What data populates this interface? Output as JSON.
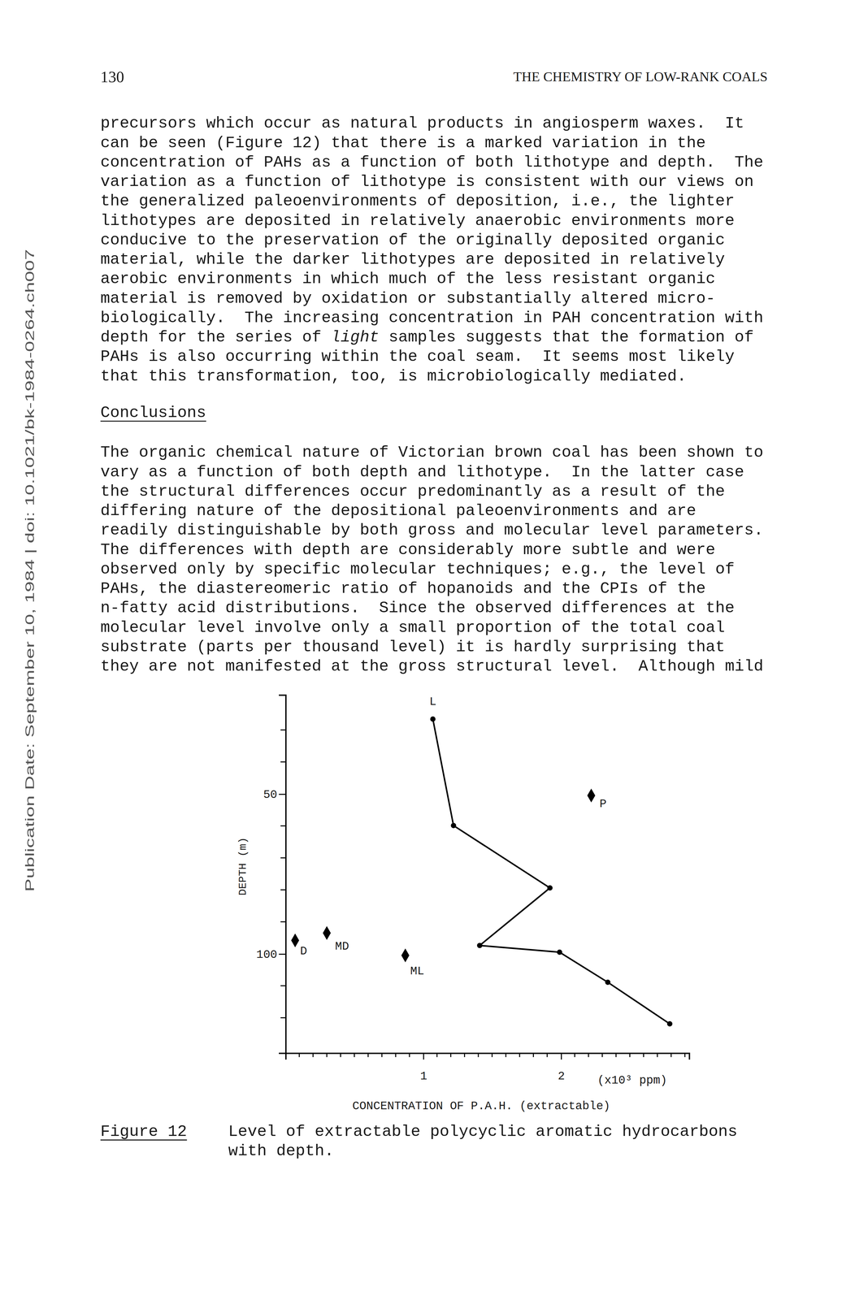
{
  "header": {
    "page_number": "130",
    "running_title": "THE CHEMISTRY OF LOW-RANK COALS"
  },
  "side_note": "Publication Date: September 10, 1984 | doi: 10.1021/bk-1984-0264.ch007",
  "paragraph_1": [
    "precursors which occur as natural products in angiosperm waxes.  It",
    "can be seen (Figure 12) that there is a marked variation in the",
    "concentration of PAHs as a function of both lithotype and depth.  The",
    "variation as a function of lithotype is consistent with our views on",
    "the generalized paleoenvironments of deposition, i.e., the lighter",
    "lithotypes are deposited in relatively anaerobic environments more",
    "conducive to the preservation of the originally deposited organic",
    "material, while the darker lithotypes are deposited in relatively",
    "aerobic environments in which much of the less resistant organic",
    "material is removed by oxidation or substantially altered micro-",
    "biologically.  The increasing concentration in PAH concentration with",
    [
      "depth for the series of ",
      {
        "text": "light",
        "italic": true
      },
      " samples suggests that the formation of"
    ],
    "PAHs is also occurring within the coal seam.  It seems most likely",
    "that this transformation, too, is microbiologically mediated."
  ],
  "heading": "Conclusions",
  "paragraph_2": [
    "The organic chemical nature of Victorian brown coal has been shown to",
    "vary as a function of both depth and lithotype.  In the latter case",
    "the structural differences occur predominantly as a result of the",
    "differing nature of the depositional paleoenvironments and are",
    "readily distinguishable by both gross and molecular level parameters.",
    "The differences with depth are considerably more subtle and were",
    "observed only by specific molecular techniques; e.g., the level of",
    "PAHs, the diastereomeric ratio of hopanoids and the CPIs of the",
    "n-fatty acid distributions.  Since the observed differences at the",
    "molecular level involve only a small proportion of the total coal",
    "substrate (parts per thousand level) it is hardly surprising that",
    "they are not manifested at the gross structural level.  Although mild"
  ],
  "chart_data": {
    "type": "line",
    "xlabel": "CONCENTRATION OF P.A.H. (extractable)",
    "x_unit": "(x10³ ppm)",
    "ylabel": "DEPTH (m)",
    "xlim": [
      0,
      2.93
    ],
    "xticks": [
      1,
      2
    ],
    "x_minor_ticks": [
      0.1,
      0.2,
      0.3,
      0.4,
      0.5,
      0.6,
      0.7,
      0.8,
      0.9,
      1.1,
      1.2,
      1.3,
      1.4,
      1.5,
      1.6,
      1.7,
      1.8,
      1.9,
      2.1,
      2.2,
      2.3,
      2.4,
      2.5,
      2.6,
      2.7,
      2.8,
      2.9
    ],
    "ylim": [
      131,
      19
    ],
    "yticks": [
      50,
      100
    ],
    "y_minor_ticks": [
      30,
      40,
      60,
      70,
      80,
      90,
      110,
      120
    ],
    "color": "#000000",
    "series": [
      {
        "name": "L",
        "marker": "circle",
        "line_style": "solid",
        "x": [
          1.07,
          1.22,
          1.92,
          1.41,
          1.99,
          2.34,
          2.79
        ],
        "values": [
          26.6,
          59.9,
          79.4,
          97.4,
          99.5,
          108.9,
          121.9
        ]
      },
      {
        "name": "P",
        "type": "scatter",
        "marker": "diamond",
        "x": [
          2.22
        ],
        "values": [
          50.5
        ]
      },
      {
        "name": "D",
        "type": "scatter",
        "marker": "diamond",
        "x": [
          0.07
        ],
        "values": [
          95.8
        ]
      },
      {
        "name": "MD",
        "type": "scatter",
        "marker": "diamond",
        "x": [
          0.3
        ],
        "values": [
          93.5
        ]
      },
      {
        "name": "ML",
        "type": "scatter",
        "marker": "diamond",
        "x": [
          0.87
        ],
        "values": [
          100.5
        ]
      }
    ]
  },
  "caption": {
    "label": "Figure 12",
    "lines": [
      "Level of extractable polycyclic aromatic hydrocarbons",
      "with depth."
    ]
  }
}
